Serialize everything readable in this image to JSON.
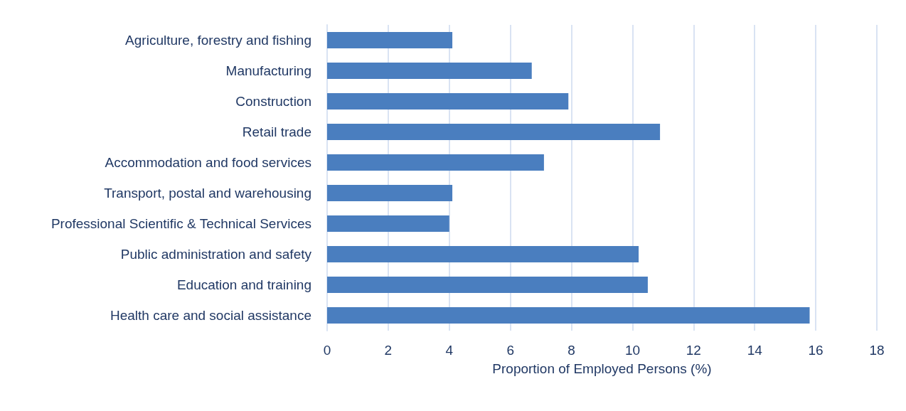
{
  "chart_data": {
    "type": "bar",
    "orientation": "horizontal",
    "categories": [
      "Agriculture, forestry and fishing",
      "Manufacturing",
      "Construction",
      "Retail trade",
      "Accommodation and food services",
      "Transport, postal and warehousing",
      "Professional Scientific & Technical Services",
      "Public administration and safety",
      "Education and training",
      "Health care and social assistance"
    ],
    "values": [
      4.1,
      6.7,
      7.9,
      10.9,
      7.1,
      4.1,
      4.0,
      10.2,
      10.5,
      15.8
    ],
    "color": "#4a7ebf",
    "xlabel": "Proportion of Employed Persons (%)",
    "xlim": [
      0,
      18
    ],
    "xticks": [
      0,
      2,
      4,
      6,
      8,
      10,
      12,
      14,
      16,
      18
    ],
    "grid": "x"
  }
}
